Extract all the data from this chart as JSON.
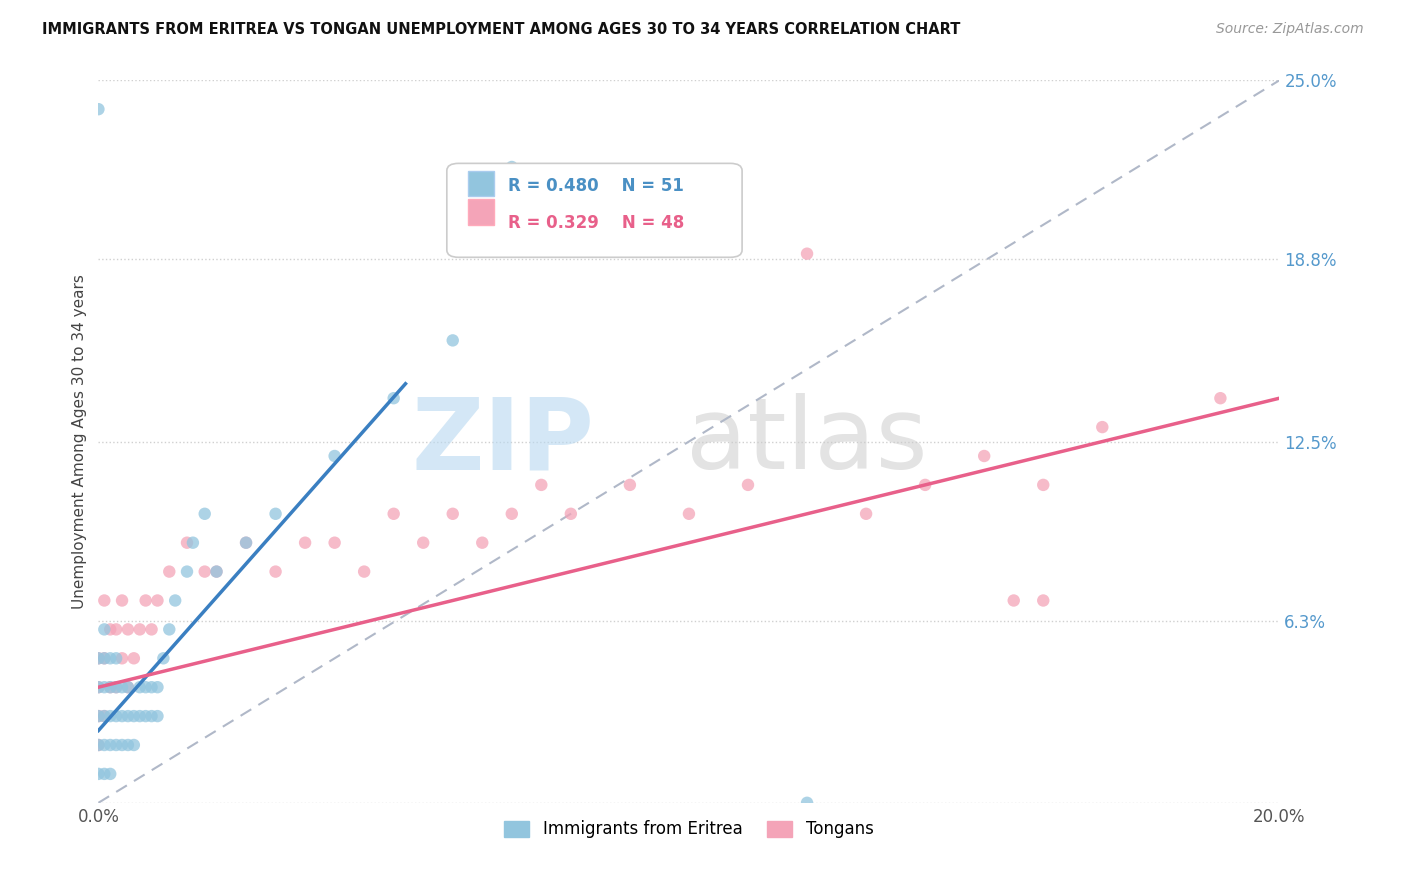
{
  "title": "IMMIGRANTS FROM ERITREA VS TONGAN UNEMPLOYMENT AMONG AGES 30 TO 34 YEARS CORRELATION CHART",
  "source": "Source: ZipAtlas.com",
  "ylabel": "Unemployment Among Ages 30 to 34 years",
  "xmin": 0.0,
  "xmax": 0.2,
  "ymin": 0.0,
  "ymax": 0.25,
  "yticks": [
    0.0,
    0.063,
    0.125,
    0.188,
    0.25
  ],
  "ytick_labels": [
    "",
    "6.3%",
    "12.5%",
    "18.8%",
    "25.0%"
  ],
  "xticks": [
    0.0,
    0.05,
    0.1,
    0.15,
    0.2
  ],
  "xtick_labels": [
    "0.0%",
    "",
    "",
    "",
    "20.0%"
  ],
  "legend_r1": "R = 0.480",
  "legend_n1": "N = 51",
  "legend_r2": "R = 0.329",
  "legend_n2": "N = 48",
  "color_blue": "#92c5de",
  "color_pink": "#f4a4b8",
  "color_blue_line": "#3a7fc1",
  "color_pink_line": "#e8608a",
  "color_blue_text": "#4a90c4",
  "color_pink_text": "#e8608a",
  "background_color": "#ffffff",
  "grid_color": "#d0d0d0",
  "blue_x": [
    0.0,
    0.0,
    0.0,
    0.0,
    0.0,
    0.001,
    0.001,
    0.001,
    0.001,
    0.001,
    0.001,
    0.002,
    0.002,
    0.002,
    0.002,
    0.002,
    0.003,
    0.003,
    0.003,
    0.003,
    0.004,
    0.004,
    0.004,
    0.005,
    0.005,
    0.005,
    0.006,
    0.006,
    0.007,
    0.007,
    0.008,
    0.008,
    0.009,
    0.009,
    0.01,
    0.01,
    0.011,
    0.012,
    0.013,
    0.015,
    0.016,
    0.018,
    0.02,
    0.025,
    0.03,
    0.04,
    0.05,
    0.06,
    0.07,
    0.12,
    0.0
  ],
  "blue_y": [
    0.01,
    0.02,
    0.03,
    0.04,
    0.05,
    0.01,
    0.02,
    0.03,
    0.04,
    0.05,
    0.06,
    0.01,
    0.02,
    0.03,
    0.04,
    0.05,
    0.02,
    0.03,
    0.04,
    0.05,
    0.02,
    0.03,
    0.04,
    0.02,
    0.03,
    0.04,
    0.02,
    0.03,
    0.03,
    0.04,
    0.03,
    0.04,
    0.03,
    0.04,
    0.03,
    0.04,
    0.05,
    0.06,
    0.07,
    0.08,
    0.09,
    0.1,
    0.08,
    0.09,
    0.1,
    0.12,
    0.14,
    0.16,
    0.22,
    0.0,
    0.24
  ],
  "pink_x": [
    0.0,
    0.0,
    0.0,
    0.0,
    0.001,
    0.001,
    0.001,
    0.002,
    0.002,
    0.003,
    0.003,
    0.004,
    0.004,
    0.005,
    0.005,
    0.006,
    0.007,
    0.008,
    0.009,
    0.01,
    0.012,
    0.015,
    0.018,
    0.02,
    0.025,
    0.03,
    0.035,
    0.04,
    0.045,
    0.05,
    0.055,
    0.06,
    0.065,
    0.07,
    0.075,
    0.08,
    0.09,
    0.1,
    0.11,
    0.12,
    0.13,
    0.14,
    0.15,
    0.16,
    0.17,
    0.155,
    0.16,
    0.19
  ],
  "pink_y": [
    0.02,
    0.03,
    0.04,
    0.05,
    0.03,
    0.05,
    0.07,
    0.04,
    0.06,
    0.04,
    0.06,
    0.05,
    0.07,
    0.04,
    0.06,
    0.05,
    0.06,
    0.07,
    0.06,
    0.07,
    0.08,
    0.09,
    0.08,
    0.08,
    0.09,
    0.08,
    0.09,
    0.09,
    0.08,
    0.1,
    0.09,
    0.1,
    0.09,
    0.1,
    0.11,
    0.1,
    0.11,
    0.1,
    0.11,
    0.19,
    0.1,
    0.11,
    0.12,
    0.11,
    0.13,
    0.07,
    0.07,
    0.14
  ],
  "blue_line_x": [
    0.0,
    0.052
  ],
  "blue_line_y": [
    0.025,
    0.145
  ],
  "pink_line_x": [
    0.0,
    0.2
  ],
  "pink_line_y": [
    0.04,
    0.14
  ],
  "diag_line_x": [
    0.0,
    0.2
  ],
  "diag_line_y": [
    0.0,
    0.25
  ]
}
